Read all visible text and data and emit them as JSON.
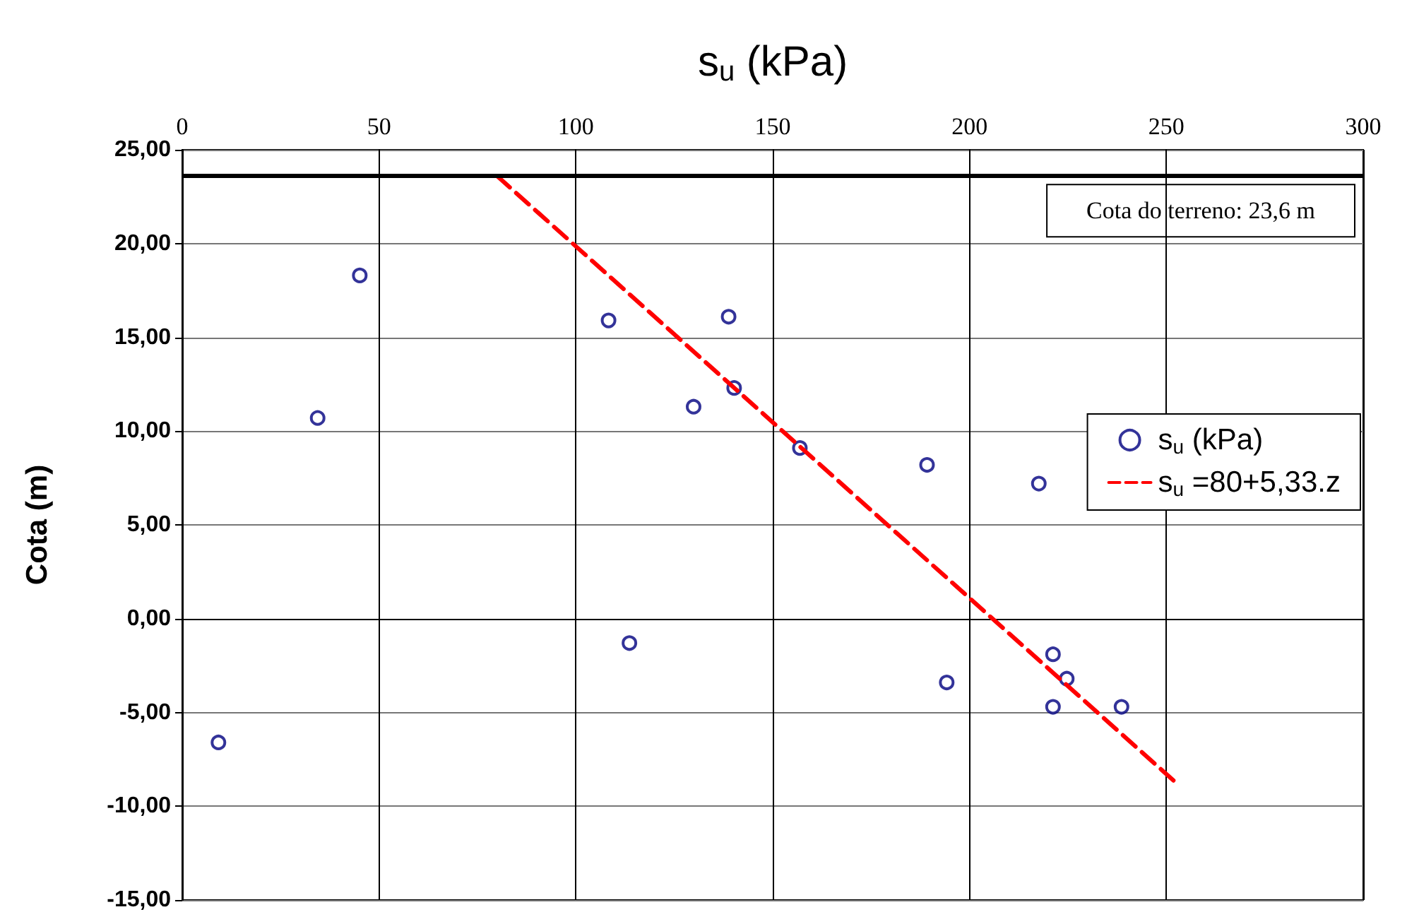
{
  "chart_data": {
    "type": "scatter",
    "xlabel": "s$_{u}$ (kPa)",
    "ylabel": "Cota (m)",
    "xlim": [
      0,
      300
    ],
    "xticks": [
      0,
      50,
      100,
      150,
      200,
      250,
      300
    ],
    "ylim": [
      -15,
      25
    ],
    "yticks": [
      {
        "value": -15,
        "label": "-15,00"
      },
      {
        "value": -10,
        "label": "-10,00"
      },
      {
        "value": -5,
        "label": "-5,00"
      },
      {
        "value": 0,
        "label": "0,00"
      },
      {
        "value": 5,
        "label": "5,00"
      },
      {
        "value": 10,
        "label": "10,00"
      },
      {
        "value": 15,
        "label": "15,00"
      },
      {
        "value": 20,
        "label": "20,00"
      },
      {
        "value": 25,
        "label": "25,00"
      }
    ],
    "grid": true,
    "legend": "right",
    "marker": "circle",
    "series": [
      {
        "name": "s$_{u}$ (kPa)",
        "color": "#000080",
        "x": [
          9.2,
          34.4,
          45.1,
          108.3,
          113.6,
          129.9,
          138.8,
          140.2,
          156.9,
          189.2,
          217.6,
          194.2,
          221.2,
          224.7,
          221.2,
          238.6
        ],
        "values": [
          -6.6,
          10.7,
          18.3,
          15.9,
          -1.3,
          11.3,
          16.1,
          12.3,
          9.1,
          8.2,
          7.2,
          -3.4,
          -1.9,
          -3.2,
          -4.7,
          -4.7
        ]
      },
      {
        "name": "s$_{u}$ =80+5,33.z",
        "type": "line",
        "color": "#ff0000",
        "line_style": "dashed",
        "marker": "none",
        "x": [
          80,
          252.2
        ],
        "values": [
          23.6,
          -8.7
        ]
      }
    ],
    "ref_lines": [
      {
        "axis": "y",
        "value": 23.6,
        "label": "Cota do terreno: 23,6 m",
        "color": "#000000"
      }
    ]
  }
}
